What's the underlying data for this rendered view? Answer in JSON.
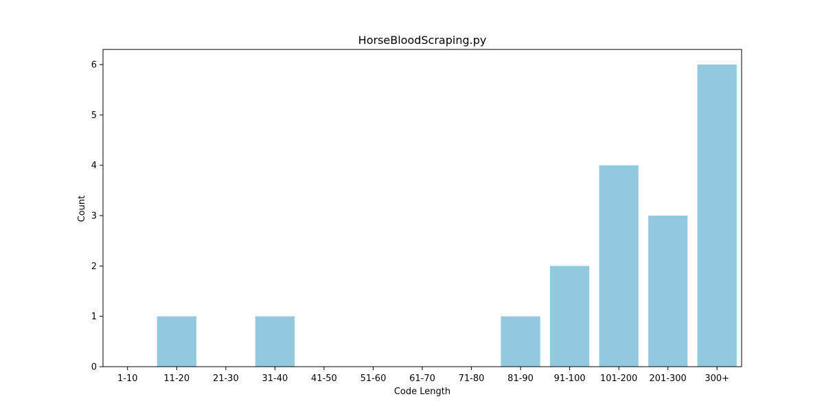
{
  "chart_data": {
    "type": "bar",
    "title": "HorseBloodScraping.py",
    "xlabel": "Code Length",
    "ylabel": "Count",
    "categories": [
      "1-10",
      "11-20",
      "21-30",
      "31-40",
      "41-50",
      "51-60",
      "61-70",
      "71-80",
      "81-90",
      "91-100",
      "101-200",
      "201-300",
      "300+"
    ],
    "values": [
      0,
      1,
      0,
      1,
      0,
      0,
      0,
      0,
      1,
      2,
      4,
      3,
      6
    ],
    "ylim": [
      0,
      6.3
    ],
    "yticks": [
      0,
      1,
      2,
      3,
      4,
      5,
      6
    ],
    "grid": false,
    "bar_color": "#92c9df"
  }
}
